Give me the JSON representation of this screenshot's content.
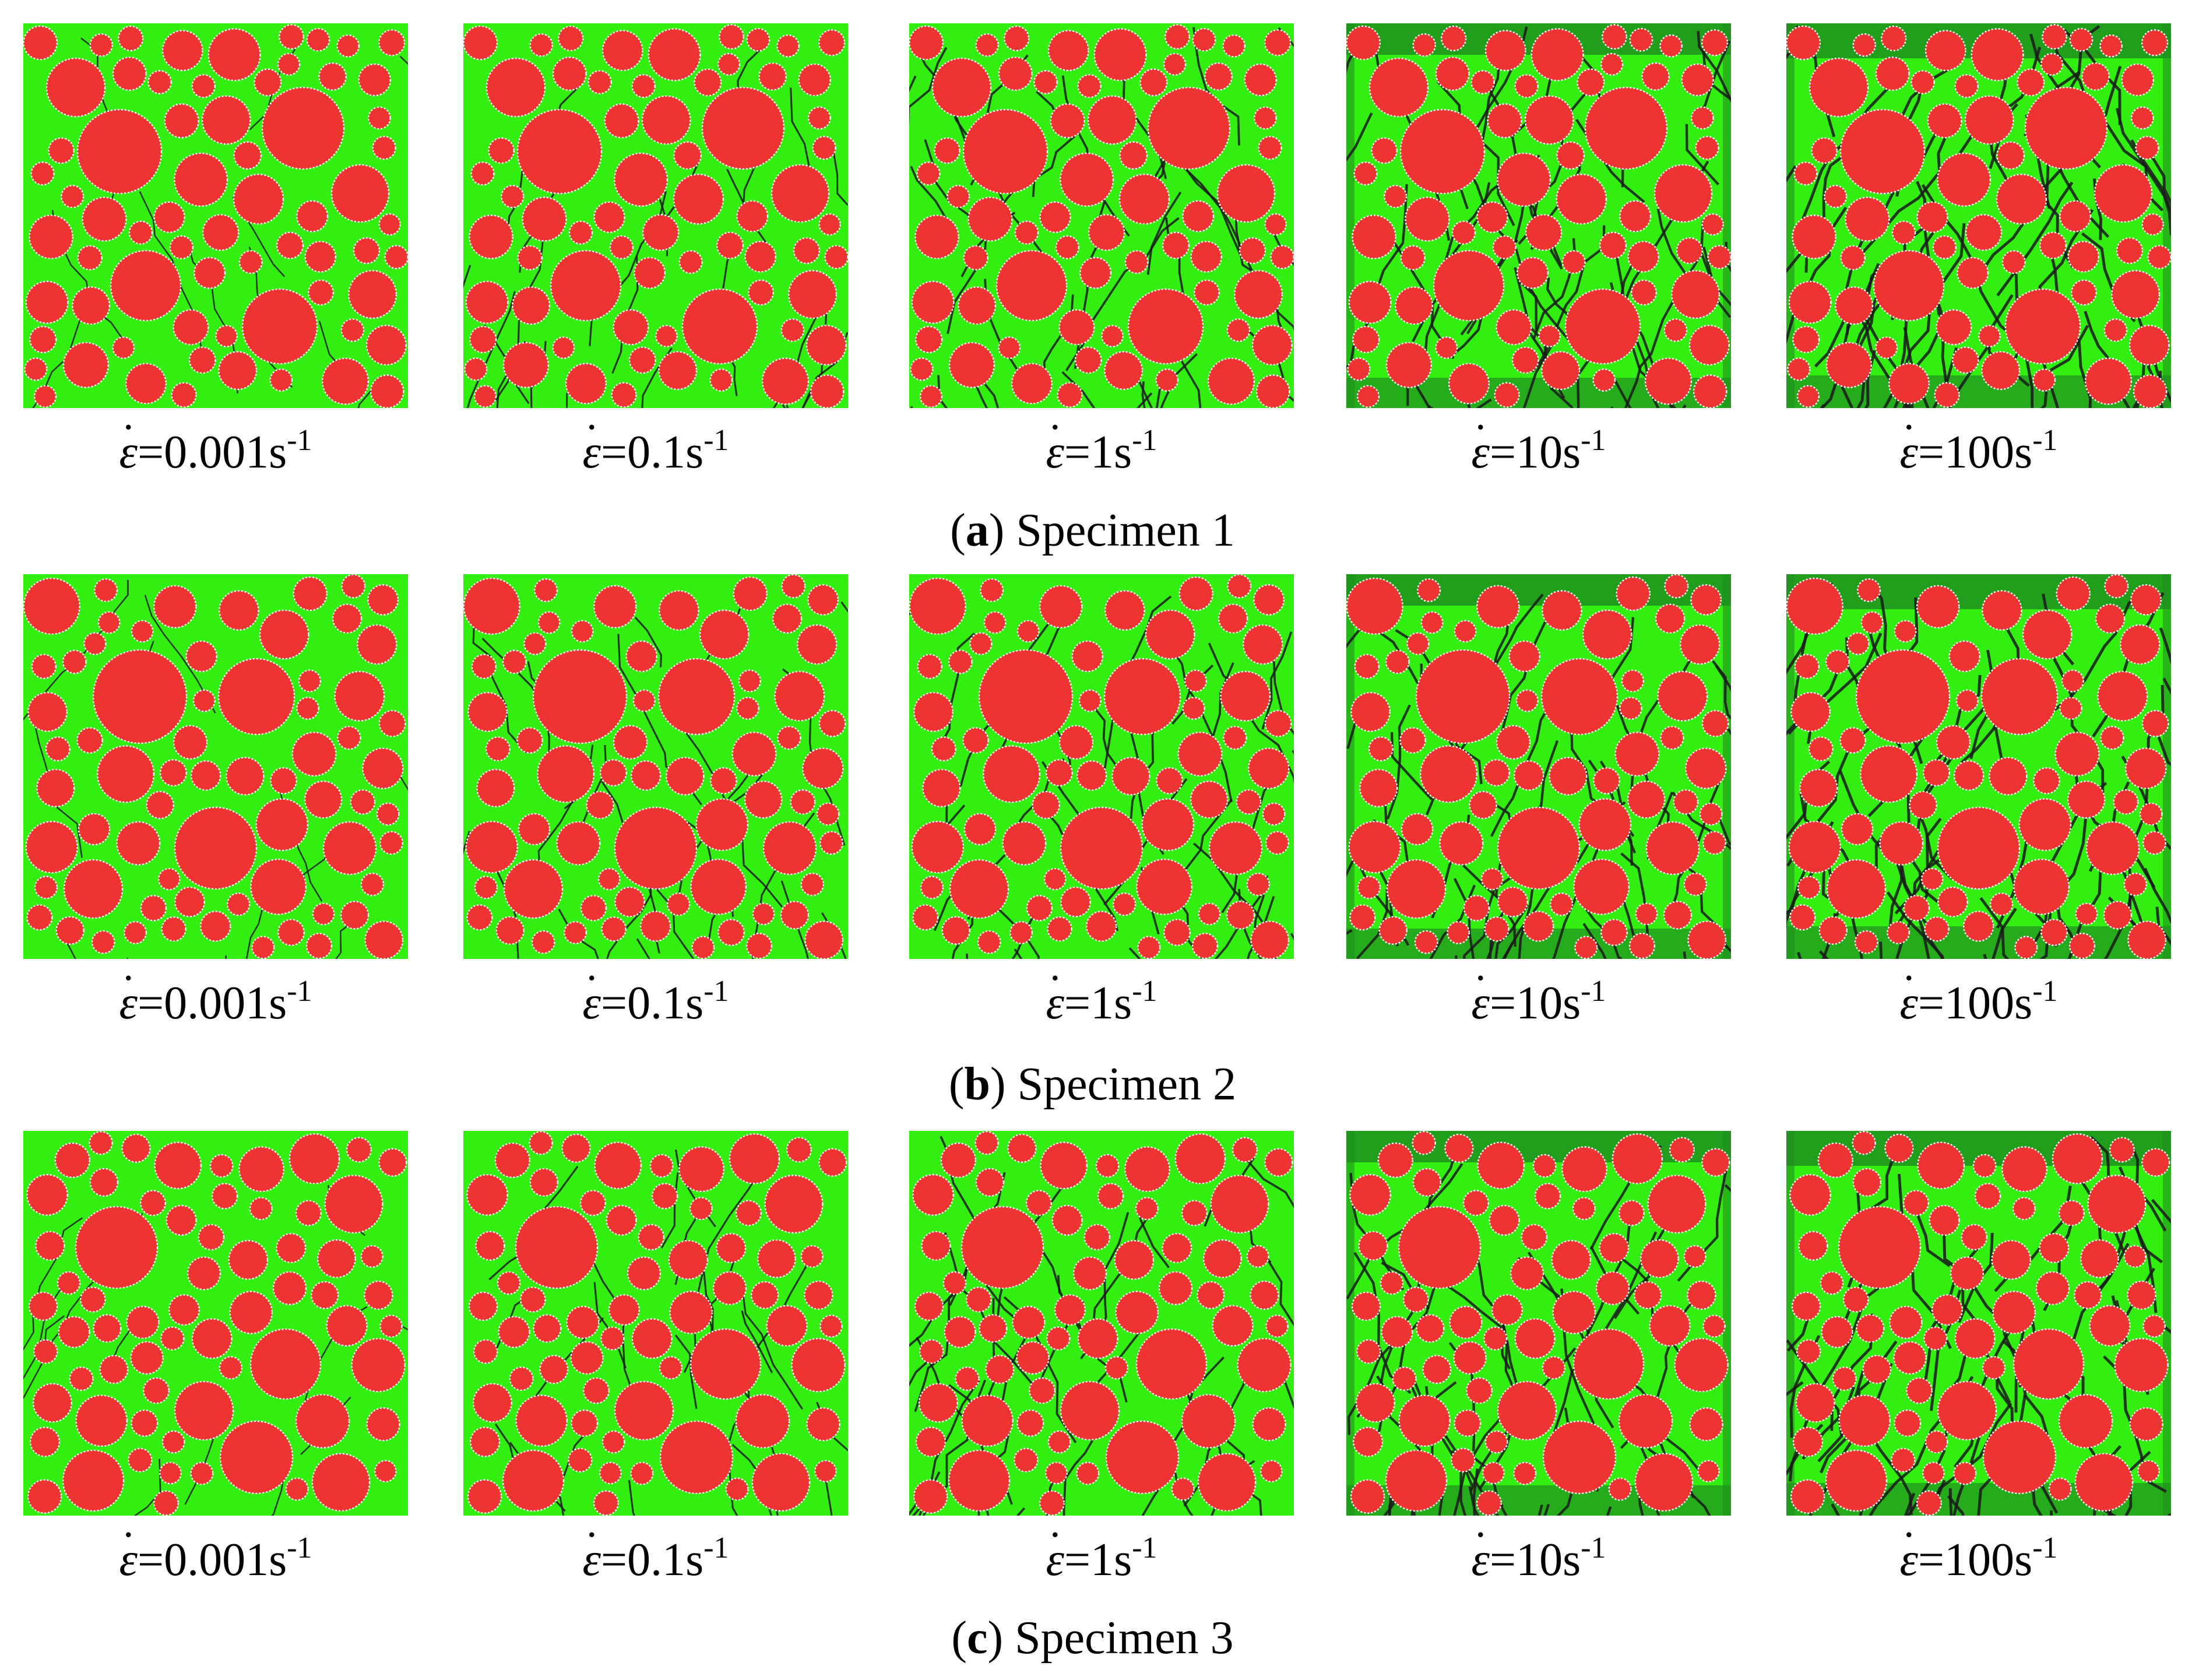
{
  "figure": {
    "rows": [
      {
        "caption_letter": "a",
        "caption_text": "Specimen 1",
        "labels": [
          {
            "value": "=0.001s",
            "exp": "-1"
          },
          {
            "value": "=0.1s",
            "exp": "-1"
          },
          {
            "value": "=1s",
            "exp": "-1"
          },
          {
            "value": "=10s",
            "exp": "-1"
          },
          {
            "value": "=100s",
            "exp": "-1"
          }
        ]
      },
      {
        "caption_letter": "b",
        "caption_text": "Specimen 2",
        "labels": [
          {
            "value": "=0.001s",
            "exp": "-1"
          },
          {
            "value": "=0.1s",
            "exp": "-1"
          },
          {
            "value": "=1s",
            "exp": "-1"
          },
          {
            "value": "=10s",
            "exp": "-1"
          },
          {
            "value": "=100s",
            "exp": "-1"
          }
        ]
      },
      {
        "caption_letter": "c",
        "caption_text": "Specimen 3",
        "labels": [
          {
            "value": "=0.001s",
            "exp": "-1"
          },
          {
            "value": "=0.1s",
            "exp": "-1"
          },
          {
            "value": "=1s",
            "exp": "-1"
          },
          {
            "value": "=10s",
            "exp": "-1"
          },
          {
            "value": "=100s",
            "exp": "-1"
          }
        ]
      }
    ],
    "strain_rate_symbol": "ε",
    "strain_rate_dot": "˙",
    "colors": {
      "mortar": "#33ee11",
      "aggregate": "#ee3333",
      "aggregate_edge": "#ffffff",
      "crack": "#1a1a1a",
      "damaged_mortar": "#1f8f1f"
    }
  }
}
